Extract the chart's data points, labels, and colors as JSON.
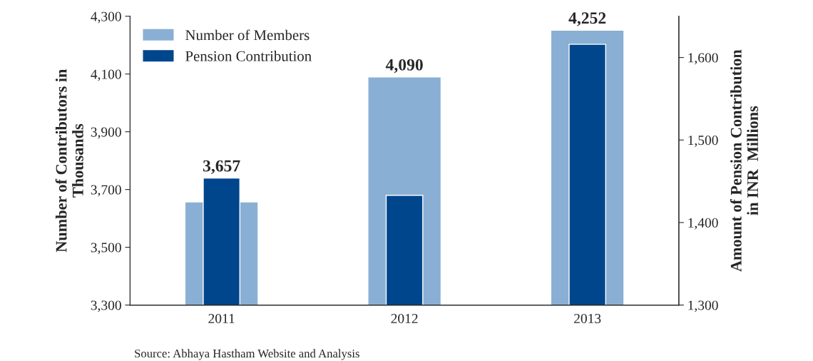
{
  "chart_data": {
    "type": "bar",
    "categories": [
      "2011",
      "2012",
      "2013"
    ],
    "series": [
      {
        "name": "Number of Members",
        "color": "#8aafd4",
        "values": [
          3657,
          4090,
          4252
        ],
        "value_labels": [
          "3,657",
          "4,090",
          "4,252"
        ]
      },
      {
        "name": "Pension Contribution",
        "color": "#00468c",
        "values": [
          1454,
          1433,
          1616
        ],
        "axis": "y2"
      }
    ],
    "ylabel": "Number of Contributors in\nThousands",
    "y2label": "Amount of Pension Contribution\nin INR  Millions",
    "ylim": [
      3300,
      4300
    ],
    "yticks": [
      {
        "value": 3300,
        "label": "3,300"
      },
      {
        "value": 3500,
        "label": "3,500"
      },
      {
        "value": 3700,
        "label": "3,700"
      },
      {
        "value": 3900,
        "label": "3,900"
      },
      {
        "value": 4100,
        "label": "4,100"
      },
      {
        "value": 4300,
        "label": "4,300"
      }
    ],
    "y2lim": [
      1300,
      1650
    ],
    "y2ticks": [
      {
        "value": 1300,
        "label": "1,300"
      },
      {
        "value": 1400,
        "label": "1,400"
      },
      {
        "value": 1500,
        "label": "1,500"
      },
      {
        "value": 1600,
        "label": "1,600"
      }
    ],
    "legend": "top left",
    "grid": false,
    "annotations": [
      "Source: Abhaya Hastham Website and Analysis"
    ]
  }
}
